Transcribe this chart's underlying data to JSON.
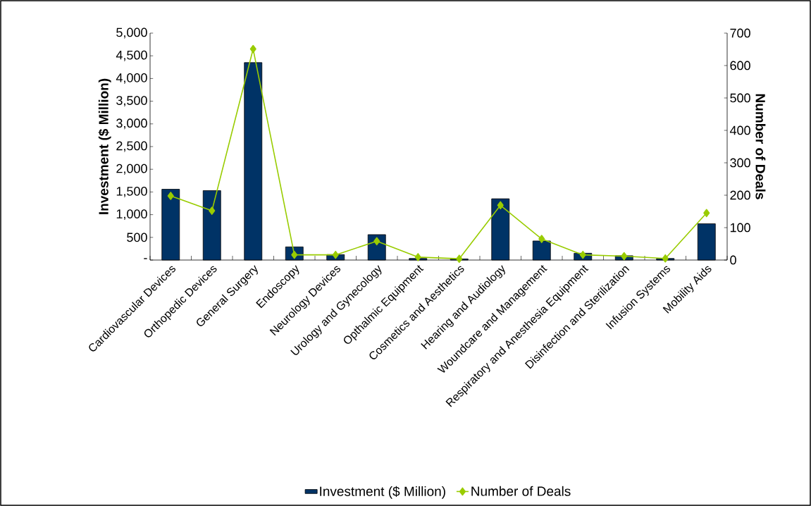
{
  "chart_data": {
    "type": "bar",
    "categories": [
      "Cardiovascular Devices",
      "Orthopedic Devices",
      "General Surgery",
      "Endoscopy",
      "Neurology Devices",
      "Urology and Gynecology",
      "Opthalmic Equipment",
      "Cosmetics and Aesthetics",
      "Hearing and Audiology",
      "Woundcare and Management",
      "Respiratory and Anesthesia Equipment",
      "Disinfection and Sterilization",
      "Infusion Systems",
      "Mobility Aids"
    ],
    "ylabel": "Investment ($ Million)",
    "y2label": "Number of Deals",
    "ylim": [
      0,
      5000
    ],
    "yticks": [
      {
        "value": 0,
        "label": "-"
      },
      {
        "value": 500,
        "label": "500"
      },
      {
        "value": 1000,
        "label": "1,000"
      },
      {
        "value": 1500,
        "label": "1,500"
      },
      {
        "value": 2000,
        "label": "2,000"
      },
      {
        "value": 2500,
        "label": "2,500"
      },
      {
        "value": 3000,
        "label": "3,000"
      },
      {
        "value": 3500,
        "label": "3,500"
      },
      {
        "value": 4000,
        "label": "4,000"
      },
      {
        "value": 4500,
        "label": "4,500"
      },
      {
        "value": 5000,
        "label": "5,000"
      }
    ],
    "y2lim": [
      0,
      700
    ],
    "y2ticks": [
      0,
      100,
      200,
      300,
      400,
      500,
      600,
      700
    ],
    "legend": "bottom",
    "grid": false,
    "series": [
      {
        "name": "Investment ($ Million)",
        "color": "#003366",
        "values": [
          1560,
          1530,
          4350,
          290,
          120,
          560,
          35,
          25,
          1350,
          420,
          150,
          95,
          35,
          800
        ]
      },
      {
        "name": "Number of Deals",
        "type": "line",
        "axis": "y2",
        "color": "#99cc00",
        "marker": "diamond",
        "values": [
          198,
          152,
          651,
          16,
          16,
          58,
          9,
          4,
          169,
          65,
          16,
          12,
          5,
          145
        ]
      }
    ]
  }
}
